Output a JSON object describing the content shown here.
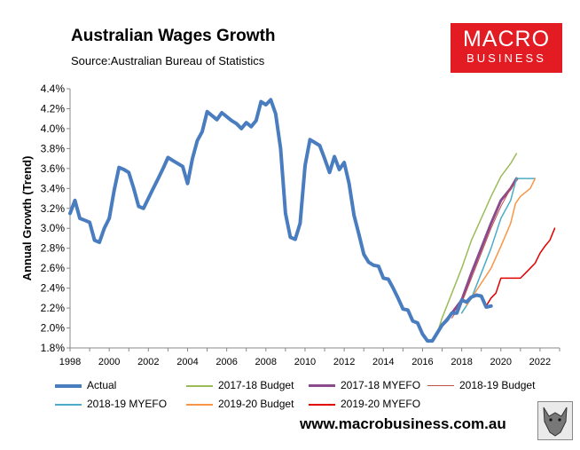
{
  "header": {
    "title": "Australian Wages Growth",
    "source": "Source:Australian Bureau of Statistics"
  },
  "logo": {
    "top": "MACRO",
    "bottom": "BUSINESS",
    "color": "#e31b23"
  },
  "footer": {
    "website": "www.macrobusiness.com.au"
  },
  "chart_data": {
    "type": "line",
    "ylabel": "Annual Growth (Trend)",
    "xlim": [
      1998,
      2023
    ],
    "ylim": [
      1.8,
      4.4
    ],
    "xticks": [
      "1998",
      "2000",
      "2002",
      "2004",
      "2006",
      "2008",
      "2010",
      "2012",
      "2014",
      "2016",
      "2018",
      "2020",
      "2022"
    ],
    "yticks": [
      "1.8%",
      "2.0%",
      "2.2%",
      "2.4%",
      "2.6%",
      "2.8%",
      "3.0%",
      "3.2%",
      "3.4%",
      "3.6%",
      "3.8%",
      "4.0%",
      "4.2%",
      "4.4%"
    ],
    "grid": false,
    "legend_position": "bottom",
    "series": [
      {
        "name": "Actual",
        "color": "#4a7dbf",
        "width": 4,
        "x": [
          1998.0,
          1998.25,
          1998.5,
          1998.75,
          1999.0,
          1999.25,
          1999.5,
          1999.75,
          2000.0,
          2000.25,
          2000.5,
          2000.75,
          2001.0,
          2001.25,
          2001.5,
          2001.75,
          2002.0,
          2002.25,
          2002.5,
          2002.75,
          2003.0,
          2003.25,
          2003.5,
          2003.75,
          2004.0,
          2004.25,
          2004.5,
          2004.75,
          2005.0,
          2005.25,
          2005.5,
          2005.75,
          2006.0,
          2006.25,
          2006.5,
          2006.75,
          2007.0,
          2007.25,
          2007.5,
          2007.75,
          2008.0,
          2008.25,
          2008.5,
          2008.75,
          2009.0,
          2009.25,
          2009.5,
          2009.75,
          2010.0,
          2010.25,
          2010.5,
          2010.75,
          2011.0,
          2011.25,
          2011.5,
          2011.75,
          2012.0,
          2012.25,
          2012.5,
          2012.75,
          2013.0,
          2013.25,
          2013.5,
          2013.75,
          2014.0,
          2014.25,
          2014.5,
          2014.75,
          2015.0,
          2015.25,
          2015.5,
          2015.75,
          2016.0,
          2016.25,
          2016.5,
          2016.75,
          2017.0,
          2017.25,
          2017.5,
          2017.75,
          2018.0,
          2018.25,
          2018.5,
          2018.75,
          2019.0,
          2019.25,
          2019.5
        ],
        "y": [
          3.15,
          3.28,
          3.1,
          3.08,
          3.06,
          2.88,
          2.86,
          3.0,
          3.1,
          3.38,
          3.61,
          3.59,
          3.56,
          3.4,
          3.22,
          3.2,
          3.3,
          3.4,
          3.5,
          3.6,
          3.71,
          3.68,
          3.65,
          3.62,
          3.45,
          3.7,
          3.88,
          3.97,
          4.17,
          4.13,
          4.09,
          4.16,
          4.12,
          4.08,
          4.05,
          4.0,
          4.06,
          4.02,
          4.08,
          4.27,
          4.24,
          4.29,
          4.15,
          3.8,
          3.15,
          2.91,
          2.89,
          3.05,
          3.63,
          3.89,
          3.86,
          3.83,
          3.7,
          3.56,
          3.72,
          3.59,
          3.66,
          3.45,
          3.13,
          2.94,
          2.74,
          2.66,
          2.63,
          2.62,
          2.5,
          2.49,
          2.4,
          2.3,
          2.19,
          2.18,
          2.07,
          2.05,
          1.94,
          1.87,
          1.87,
          1.95,
          2.03,
          2.08,
          2.15,
          2.15,
          2.28,
          2.26,
          2.31,
          2.33,
          2.32,
          2.21,
          2.22
        ]
      },
      {
        "name": "2017-18 Budget",
        "color": "#9bbb59",
        "width": 1.5,
        "x": [
          2016.75,
          2017.0,
          2017.5,
          2018.0,
          2018.5,
          2019.0,
          2019.5,
          2020.0,
          2020.5,
          2020.8
        ],
        "y": [
          1.95,
          2.1,
          2.35,
          2.6,
          2.88,
          3.1,
          3.32,
          3.52,
          3.65,
          3.75
        ]
      },
      {
        "name": "2017-18 MYEFO",
        "color": "#8b4a8c",
        "width": 3,
        "x": [
          2016.75,
          2017.0,
          2017.5,
          2018.0,
          2018.5,
          2019.0,
          2019.5,
          2020.0,
          2020.5,
          2020.8
        ],
        "y": [
          1.95,
          2.03,
          2.15,
          2.28,
          2.55,
          2.8,
          3.05,
          3.28,
          3.4,
          3.5
        ]
      },
      {
        "name": "2018-19 Budget",
        "color": "#c0504d",
        "width": 1,
        "x": [
          2017.5,
          2018.0,
          2018.5,
          2019.0,
          2019.5,
          2020.0,
          2020.5,
          2020.9
        ],
        "y": [
          2.1,
          2.25,
          2.5,
          2.75,
          3.0,
          3.22,
          3.4,
          3.5
        ]
      },
      {
        "name": "2018-19 MYEFO",
        "color": "#4bacc6",
        "width": 1.5,
        "x": [
          2018.0,
          2018.5,
          2019.0,
          2019.5,
          2020.0,
          2020.5,
          2020.8,
          2021.0,
          2021.5,
          2021.75
        ],
        "y": [
          2.15,
          2.3,
          2.55,
          2.8,
          3.1,
          3.28,
          3.5,
          3.5,
          3.5,
          3.5
        ]
      },
      {
        "name": "2019-20 Budget",
        "color": "#f79646",
        "width": 1.5,
        "x": [
          2018.25,
          2018.5,
          2019.0,
          2019.5,
          2020.0,
          2020.5,
          2020.75,
          2021.0,
          2021.5,
          2021.75
        ],
        "y": [
          2.23,
          2.3,
          2.45,
          2.6,
          2.82,
          3.05,
          3.25,
          3.32,
          3.4,
          3.5
        ]
      },
      {
        "name": "2019-20 MYEFO",
        "color": "#e00000",
        "width": 1.5,
        "x": [
          2019.25,
          2019.5,
          2019.75,
          2020.0,
          2020.5,
          2021.0,
          2021.25,
          2021.5,
          2021.75,
          2022.0,
          2022.25,
          2022.5,
          2022.75
        ],
        "y": [
          2.22,
          2.3,
          2.35,
          2.5,
          2.5,
          2.5,
          2.55,
          2.6,
          2.65,
          2.75,
          2.82,
          2.88,
          3.0
        ]
      }
    ]
  }
}
